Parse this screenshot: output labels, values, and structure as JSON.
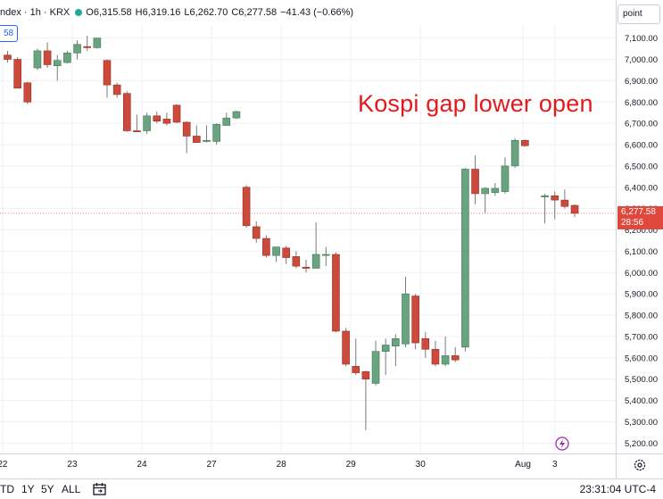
{
  "header": {
    "symbol_label": "ndex · 1h · KRX",
    "open": "O6,315.58",
    "high": "H6,319.16",
    "low": "L6,262.70",
    "close": "C6,277.58",
    "change": "−41.43 (−0.66%)"
  },
  "scale_mode_label": "point",
  "top_left_tag": "58",
  "annotation": "Kospi gap lower open",
  "last_price": {
    "value": "6,277.58",
    "countdown": "28:56"
  },
  "bottom_bar": {
    "ranges": [
      "TD",
      "1Y",
      "5Y",
      "ALL"
    ],
    "clock": "23:31:04 UTC-4"
  },
  "icons": {
    "settings": "gear-icon",
    "flash": "flash-icon",
    "date_range": "date-range-icon"
  },
  "colors": {
    "up": "#6aa37f",
    "down": "#cc4a3b",
    "wick": "#7a7a7a",
    "annotation": "#e5191c"
  },
  "chart_data": {
    "type": "candlestick",
    "title": "",
    "ylim": [
      5150,
      7200
    ],
    "y_ticks": [
      5200,
      5300,
      5400,
      5500,
      5600,
      5700,
      5800,
      5900,
      6000,
      6100,
      6200,
      6300,
      6400,
      6500,
      6600,
      6700,
      6800,
      6900,
      7000,
      7100
    ],
    "y_tick_labels": [
      "5,200.00",
      "5,300.00",
      "5,400.00",
      "5,500.00",
      "5,600.00",
      "5,700.00",
      "5,800.00",
      "5,900.00",
      "6,000.00",
      "6,100.00",
      "6,200.00",
      "6,300.00",
      "6,400.00",
      "6,500.00",
      "6,600.00",
      "6,700.00",
      "6,800.00",
      "6,900.00",
      "7,000.00",
      "7,100.00"
    ],
    "x_tick_labels": [
      "22",
      "23",
      "24",
      "27",
      "28",
      "29",
      "30",
      "Aug",
      "3"
    ],
    "x_tick_index": [
      -0.5,
      6.5,
      13.5,
      20.5,
      27.5,
      34.5,
      41.5,
      51.8,
      55.0
    ],
    "last_close": 6277.58,
    "candles": [
      {
        "o": 7020,
        "h": 7040,
        "l": 6985,
        "c": 7000
      },
      {
        "o": 7000,
        "h": 7010,
        "l": 6880,
        "c": 6865
      },
      {
        "o": 6890,
        "h": 6895,
        "l": 6790,
        "c": 6800
      },
      {
        "o": 6960,
        "h": 7050,
        "l": 6950,
        "c": 7040
      },
      {
        "o": 7040,
        "h": 7080,
        "l": 6960,
        "c": 6975
      },
      {
        "o": 6970,
        "h": 7020,
        "l": 6900,
        "c": 6995
      },
      {
        "o": 6985,
        "h": 7040,
        "l": 6980,
        "c": 7030
      },
      {
        "o": 7030,
        "h": 7090,
        "l": 7000,
        "c": 7070
      },
      {
        "o": 7060,
        "h": 7110,
        "l": 7040,
        "c": 7055
      },
      {
        "o": 7055,
        "h": 7100,
        "l": 7050,
        "c": 7100
      },
      {
        "o": 6995,
        "h": 7000,
        "l": 6820,
        "c": 6880
      },
      {
        "o": 6880,
        "h": 6890,
        "l": 6820,
        "c": 6835
      },
      {
        "o": 6840,
        "h": 6850,
        "l": 6660,
        "c": 6665
      },
      {
        "o": 6665,
        "h": 6740,
        "l": 6660,
        "c": 6660
      },
      {
        "o": 6665,
        "h": 6750,
        "l": 6650,
        "c": 6735
      },
      {
        "o": 6735,
        "h": 6755,
        "l": 6700,
        "c": 6710
      },
      {
        "o": 6720,
        "h": 6750,
        "l": 6690,
        "c": 6700
      },
      {
        "o": 6785,
        "h": 6790,
        "l": 6700,
        "c": 6705
      },
      {
        "o": 6705,
        "h": 6710,
        "l": 6560,
        "c": 6640
      },
      {
        "o": 6640,
        "h": 6690,
        "l": 6610,
        "c": 6610
      },
      {
        "o": 6620,
        "h": 6690,
        "l": 6610,
        "c": 6620
      },
      {
        "o": 6615,
        "h": 6700,
        "l": 6600,
        "c": 6695
      },
      {
        "o": 6690,
        "h": 6750,
        "l": 6690,
        "c": 6725
      },
      {
        "o": 6725,
        "h": 6760,
        "l": 6720,
        "c": 6755
      },
      {
        "o": 6400,
        "h": 6410,
        "l": 6210,
        "c": 6220
      },
      {
        "o": 6215,
        "h": 6240,
        "l": 6140,
        "c": 6160
      },
      {
        "o": 6160,
        "h": 6175,
        "l": 6070,
        "c": 6080
      },
      {
        "o": 6080,
        "h": 6120,
        "l": 6050,
        "c": 6120
      },
      {
        "o": 6115,
        "h": 6125,
        "l": 6040,
        "c": 6070
      },
      {
        "o": 6075,
        "h": 6100,
        "l": 6020,
        "c": 6030
      },
      {
        "o": 6025,
        "h": 6060,
        "l": 6000,
        "c": 6020
      },
      {
        "o": 6020,
        "h": 6235,
        "l": 6020,
        "c": 6085
      },
      {
        "o": 6085,
        "h": 6120,
        "l": 6030,
        "c": 6085
      },
      {
        "o": 6085,
        "h": 6095,
        "l": 5720,
        "c": 5725
      },
      {
        "o": 5725,
        "h": 5740,
        "l": 5560,
        "c": 5570
      },
      {
        "o": 5560,
        "h": 5690,
        "l": 5520,
        "c": 5530
      },
      {
        "o": 5535,
        "h": 5540,
        "l": 5260,
        "c": 5500
      },
      {
        "o": 5480,
        "h": 5680,
        "l": 5470,
        "c": 5630
      },
      {
        "o": 5630,
        "h": 5690,
        "l": 5520,
        "c": 5660
      },
      {
        "o": 5655,
        "h": 5710,
        "l": 5560,
        "c": 5690
      },
      {
        "o": 5665,
        "h": 5980,
        "l": 5650,
        "c": 5900
      },
      {
        "o": 5890,
        "h": 5900,
        "l": 5640,
        "c": 5670
      },
      {
        "o": 5690,
        "h": 5720,
        "l": 5600,
        "c": 5640
      },
      {
        "o": 5640,
        "h": 5680,
        "l": 5560,
        "c": 5570
      },
      {
        "o": 5570,
        "h": 5700,
        "l": 5560,
        "c": 5610
      },
      {
        "o": 5610,
        "h": 5650,
        "l": 5580,
        "c": 5590
      },
      {
        "o": 5650,
        "h": 6490,
        "l": 5630,
        "c": 6485
      },
      {
        "o": 6485,
        "h": 6550,
        "l": 6320,
        "c": 6370
      },
      {
        "o": 6370,
        "h": 6400,
        "l": 6280,
        "c": 6395
      },
      {
        "o": 6375,
        "h": 6420,
        "l": 6360,
        "c": 6395
      },
      {
        "o": 6380,
        "h": 6540,
        "l": 6370,
        "c": 6500
      },
      {
        "o": 6500,
        "h": 6630,
        "l": 6490,
        "c": 6620
      },
      {
        "o": 6620,
        "h": 6625,
        "l": 6590,
        "c": 6595
      },
      null,
      {
        "o": 6360,
        "h": 6370,
        "l": 6230,
        "c": 6360
      },
      {
        "o": 6360,
        "h": 6380,
        "l": 6250,
        "c": 6340
      },
      {
        "o": 6340,
        "h": 6390,
        "l": 6300,
        "c": 6310
      },
      {
        "o": 6315,
        "h": 6320,
        "l": 6260,
        "c": 6278
      }
    ]
  }
}
